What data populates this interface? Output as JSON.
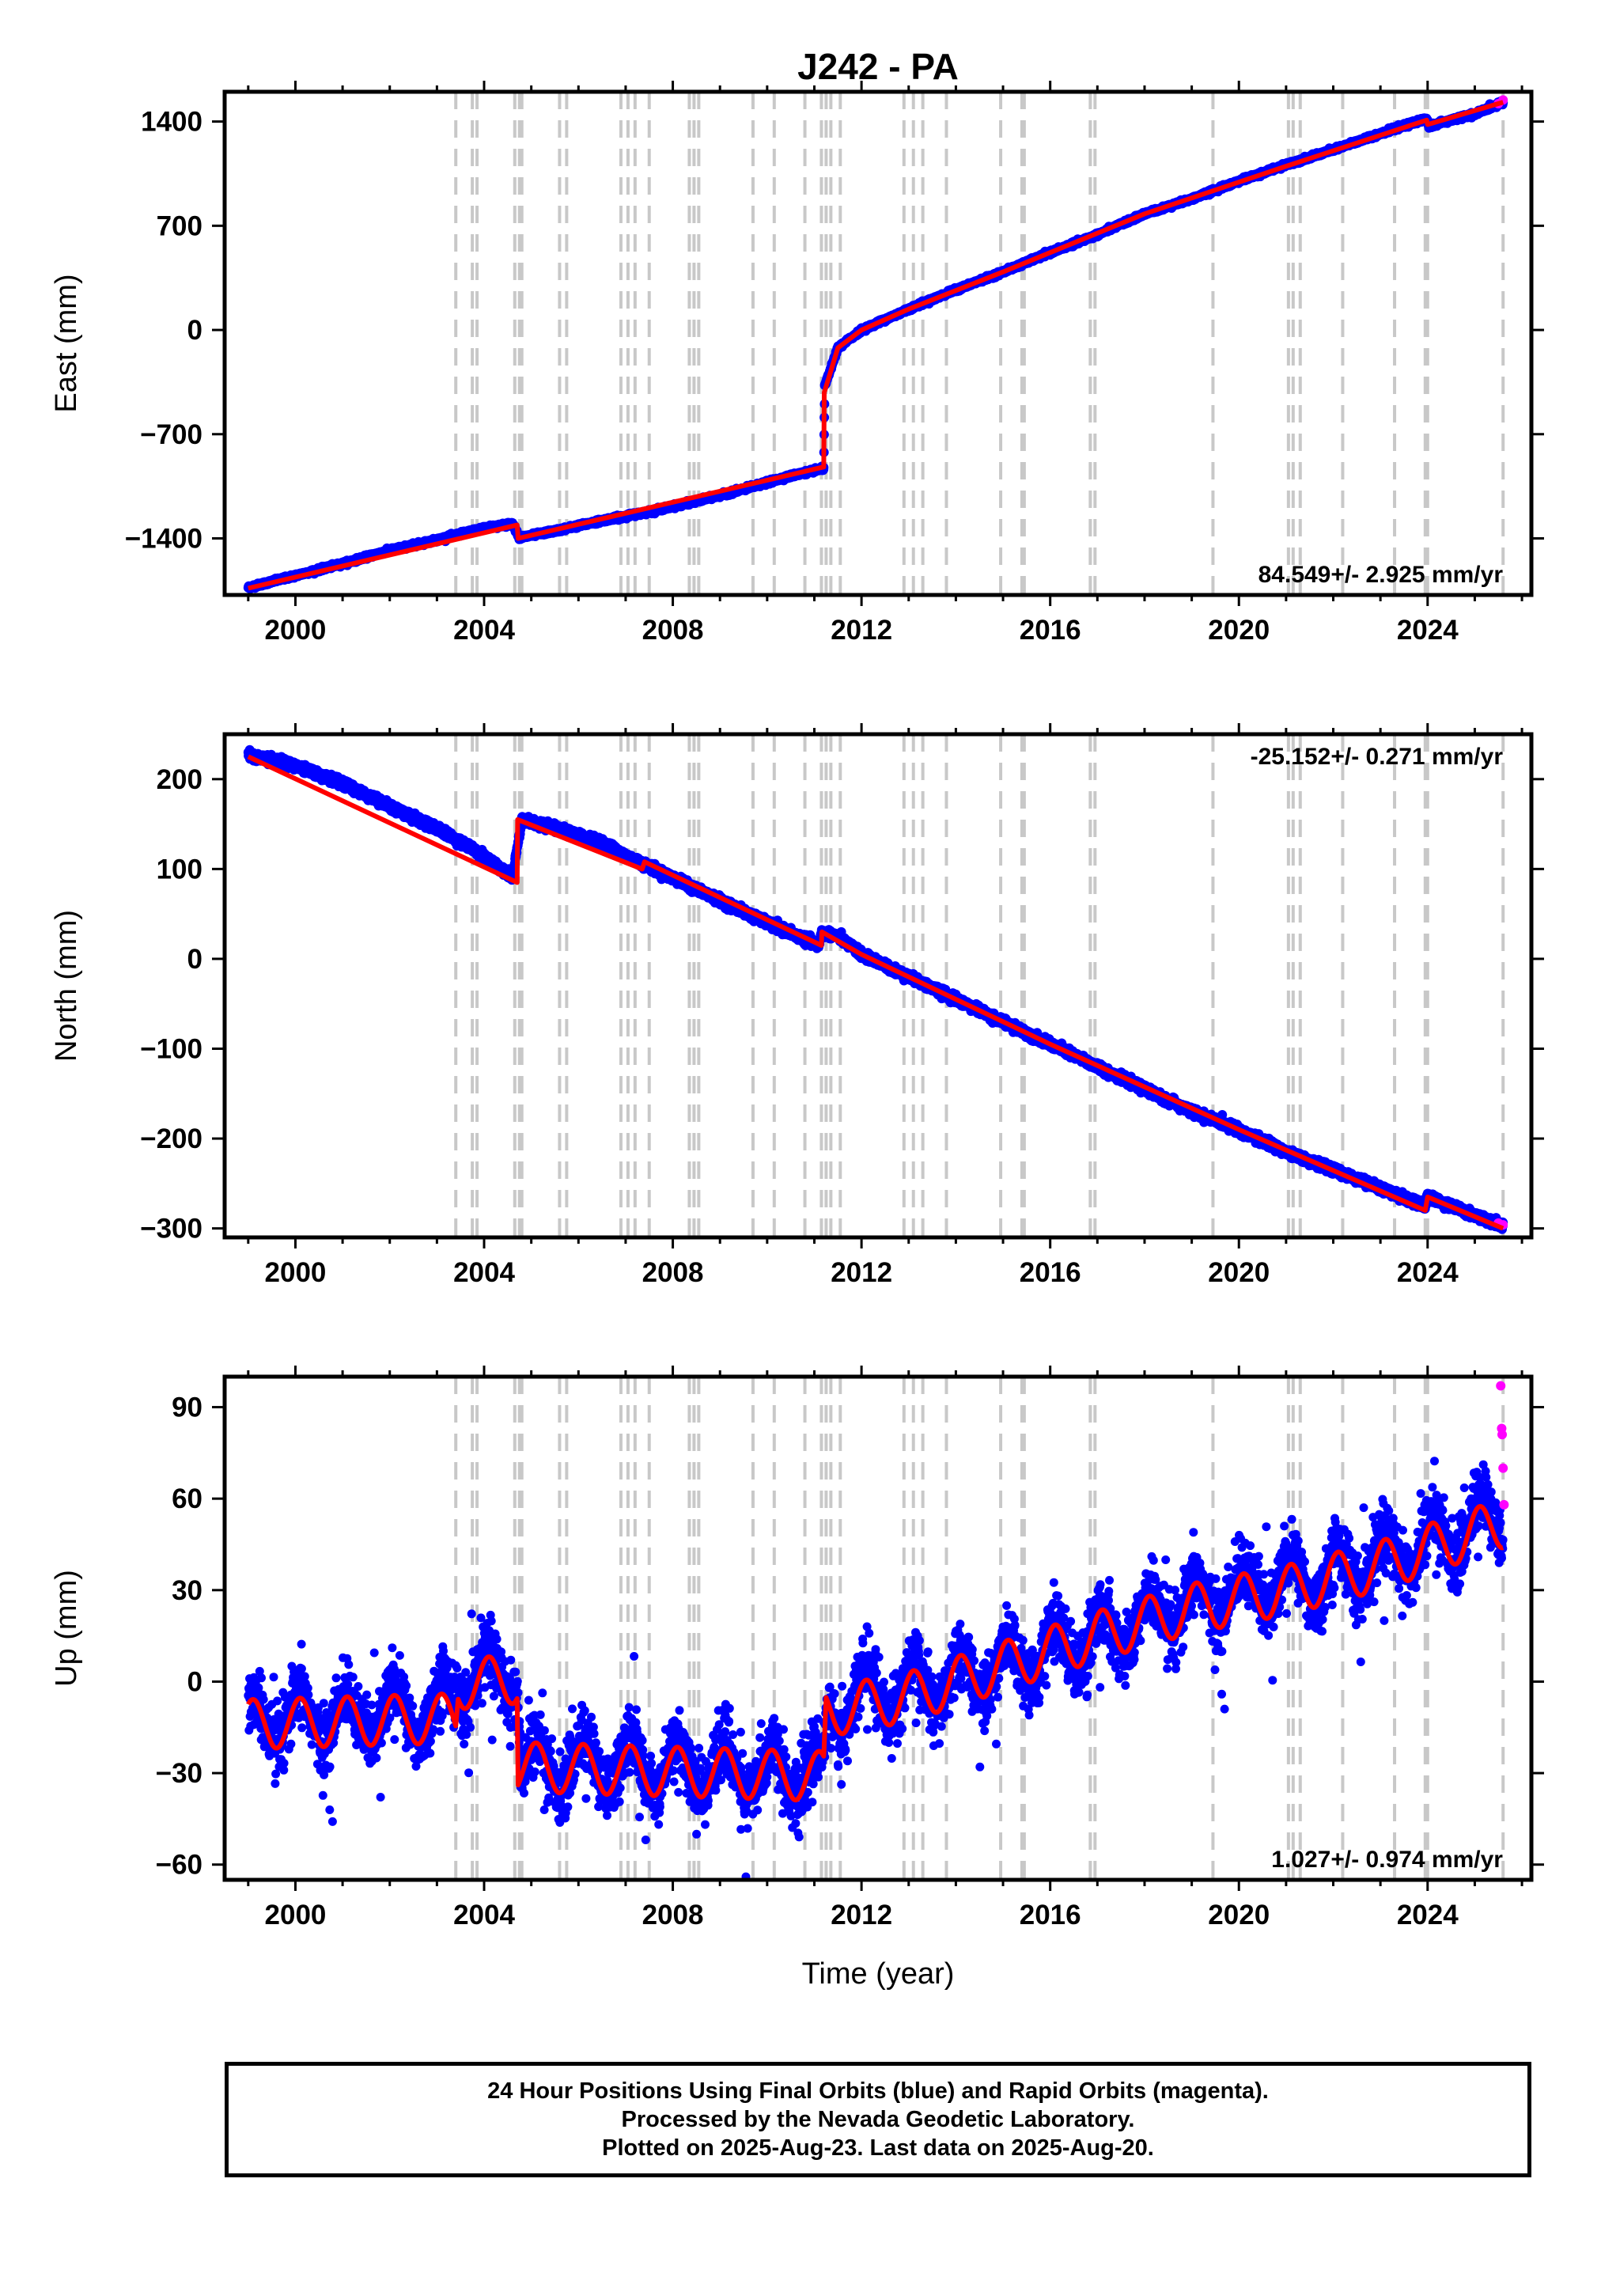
{
  "title": "J242 - PA",
  "xlabel": "Time (year)",
  "footer": {
    "line1": "24 Hour Positions Using Final Orbits (blue) and Rapid Orbits (magenta).",
    "line2": "Processed by the Nevada Geodetic Laboratory.",
    "line3": "Plotted on 2025-Aug-23. Last data on 2025-Aug-20."
  },
  "colors": {
    "final_orbits": "#0000ff",
    "rapid_orbits": "#ff00ff",
    "model_fit": "#ff0000",
    "event_lines": "#c8c8c8"
  },
  "event_lines_years": [
    2003.4,
    2003.75,
    2003.85,
    2004.65,
    2004.75,
    2004.8,
    2005.6,
    2005.75,
    2006.9,
    2007.05,
    2007.2,
    2007.5,
    2008.35,
    2008.45,
    2008.55,
    2009.7,
    2010.15,
    2010.8,
    2011.15,
    2011.25,
    2011.35,
    2011.55,
    2012.9,
    2013.1,
    2013.3,
    2013.8,
    2014.95,
    2015.4,
    2015.45,
    2016.85,
    2016.95,
    2019.45,
    2021.05,
    2021.15,
    2021.3,
    2022.2,
    2023.3,
    2023.95,
    2024.0,
    2025.6
  ],
  "chart_data": [
    {
      "type": "scatter",
      "panel": "east",
      "title": "J242 - PA",
      "xlabel": "",
      "ylabel": "East (mm)",
      "xlim": [
        1998.5,
        2026.2
      ],
      "ylim": [
        -1780,
        1600
      ],
      "xticks": [
        "2000",
        "2004",
        "2008",
        "2012",
        "2016",
        "2020",
        "2024"
      ],
      "yticks": [
        "-1400",
        "-700",
        "0",
        "700",
        "1400"
      ],
      "velocity_text": "84.549+/- 2.925 mm/yr",
      "series": [
        {
          "name": "Final Orbits (blue)",
          "x": [
            1999.0,
            2000.0,
            2001.0,
            2002.0,
            2003.0,
            2004.0,
            2004.6,
            2004.75,
            2005.5,
            2006.5,
            2007.5,
            2008.5,
            2009.5,
            2010.5,
            2011.2,
            2011.22,
            2011.5,
            2012.0,
            2013.0,
            2014.0,
            2015.0,
            2016.0,
            2017.0,
            2018.0,
            2019.0,
            2020.0,
            2021.0,
            2022.0,
            2023.0,
            2023.98,
            2024.02,
            2025.0,
            2025.6
          ],
          "y": [
            -1730,
            -1650,
            -1570,
            -1480,
            -1410,
            -1330,
            -1300,
            -1395,
            -1350,
            -1280,
            -1220,
            -1150,
            -1070,
            -980,
            -930,
            -380,
            -120,
            0,
            140,
            270,
            390,
            520,
            640,
            780,
            880,
            1000,
            1110,
            1210,
            1320,
            1420,
            1370,
            1450,
            1530
          ]
        },
        {
          "name": "Rapid Orbits (magenta)",
          "x": [
            2025.5,
            2025.6
          ],
          "y": [
            1520,
            1545
          ]
        }
      ],
      "model_fit": {
        "x": [
          1999.0,
          2004.7,
          2004.72,
          2011.2,
          2011.21,
          2011.5,
          2012.0,
          2013.0,
          2015.0,
          2018.0,
          2021.0,
          2023.98,
          2024.0,
          2025.6
        ],
        "y": [
          -1735,
          -1310,
          -1400,
          -920,
          -420,
          -120,
          0,
          140,
          390,
          780,
          1100,
          1410,
          1380,
          1530
        ]
      }
    },
    {
      "type": "scatter",
      "panel": "north",
      "xlabel": "",
      "ylabel": "North (mm)",
      "xlim": [
        1998.5,
        2026.2
      ],
      "ylim": [
        -310,
        250
      ],
      "xticks": [
        "2000",
        "2004",
        "2008",
        "2012",
        "2016",
        "2020",
        "2024"
      ],
      "yticks": [
        "-300",
        "-200",
        "-100",
        "0",
        "100",
        "200"
      ],
      "velocity_text": "-25.152+/- 0.271 mm/yr",
      "series": [
        {
          "name": "Final Orbits (blue)",
          "x": [
            1999.0,
            2000.0,
            2001.0,
            2002.0,
            2003.0,
            2004.0,
            2004.6,
            2004.8,
            2005.5,
            2006.5,
            2007.0,
            2007.4,
            2008.0,
            2009.0,
            2010.0,
            2011.1,
            2011.15,
            2011.5,
            2012.0,
            2013.0,
            2014.0,
            2015.0,
            2016.0,
            2017.0,
            2018.0,
            2019.0,
            2020.0,
            2021.0,
            2022.0,
            2023.0,
            2023.95,
            2024.0,
            2025.0,
            2025.6
          ],
          "y": [
            228,
            215,
            195,
            170,
            145,
            115,
            90,
            155,
            145,
            130,
            115,
            105,
            90,
            65,
            40,
            15,
            30,
            25,
            5,
            -20,
            -45,
            -70,
            -95,
            -120,
            -145,
            -170,
            -190,
            -215,
            -235,
            -255,
            -275,
            -265,
            -285,
            -298
          ]
        },
        {
          "name": "Rapid Orbits (magenta)",
          "x": [
            2025.5,
            2025.6
          ],
          "y": [
            -294,
            -296
          ]
        }
      ],
      "model_fit": {
        "x": [
          1999.0,
          2004.7,
          2004.71,
          2007.35,
          2007.4,
          2011.15,
          2011.16,
          2012.0,
          2016.0,
          2020.0,
          2023.95,
          2024.0,
          2025.6
        ],
        "y": [
          225,
          85,
          155,
          100,
          108,
          15,
          30,
          5,
          -95,
          -190,
          -280,
          -265,
          -300
        ]
      }
    },
    {
      "type": "scatter",
      "panel": "up",
      "xlabel": "Time (year)",
      "ylabel": "Up (mm)",
      "xlim": [
        1998.5,
        2026.2
      ],
      "ylim": [
        -65,
        100
      ],
      "xticks": [
        "2000",
        "2004",
        "2008",
        "2012",
        "2016",
        "2020",
        "2024"
      ],
      "yticks": [
        "-60",
        "-30",
        "0",
        "30",
        "60",
        "90"
      ],
      "velocity_text": "1.027+/- 0.974 mm/yr",
      "seasonal_amplitude_mm": 9,
      "series": [
        {
          "name": "Final Orbits (blue)",
          "x": [
            1999.0,
            2000.0,
            2001.0,
            2002.0,
            2003.0,
            2003.5,
            2004.0,
            2004.7,
            2004.8,
            2006.0,
            2008.0,
            2010.0,
            2011.2,
            2011.3,
            2012.0,
            2014.0,
            2016.0,
            2018.0,
            2020.0,
            2022.0,
            2024.0,
            2025.6
          ],
          "y": [
            -15,
            -12,
            -12,
            -10,
            -10,
            0,
            2,
            2,
            -28,
            -27,
            -28,
            -30,
            -30,
            -10,
            -5,
            0,
            10,
            20,
            30,
            35,
            45,
            55
          ]
        },
        {
          "name": "Rapid Orbits (magenta)",
          "x": [
            2025.55,
            2025.57,
            2025.58,
            2025.6,
            2025.62
          ],
          "y": [
            97,
            83,
            81,
            70,
            58
          ]
        }
      ],
      "model_fit": {
        "x": [
          1999.0,
          2003.4,
          2003.45,
          2004.7,
          2004.72,
          2011.2,
          2011.25,
          2013.0,
          2015.0,
          2017.0,
          2019.0,
          2021.0,
          2023.0,
          2025.6
        ],
        "y": [
          -14,
          -12,
          -1,
          1,
          -28,
          -31,
          -10,
          -5,
          5,
          15,
          24,
          30,
          38,
          52
        ]
      }
    }
  ]
}
